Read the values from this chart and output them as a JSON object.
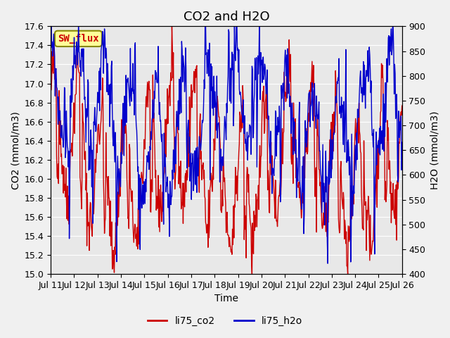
{
  "title": "CO2 and H2O",
  "xlabel": "Time",
  "ylabel_left": "CO2 (mmol/m3)",
  "ylabel_right": "H2O (mmol/m3)",
  "ylim_left": [
    15.0,
    17.6
  ],
  "ylim_right": [
    400,
    900
  ],
  "yticks_left": [
    15.0,
    15.2,
    15.4,
    15.6,
    15.8,
    16.0,
    16.2,
    16.4,
    16.6,
    16.8,
    17.0,
    17.2,
    17.4,
    17.6
  ],
  "yticks_right": [
    400,
    450,
    500,
    550,
    600,
    650,
    700,
    750,
    800,
    850,
    900
  ],
  "xtick_labels": [
    "Jul 11",
    "Jul 12",
    "Jul 13",
    "Jul 14",
    "Jul 15",
    "Jul 16",
    "Jul 17",
    "Jul 18",
    "Jul 19",
    "Jul 20",
    "Jul 21",
    "Jul 22",
    "Jul 23",
    "Jul 24",
    "Jul 25",
    "Jul 26"
  ],
  "co2_color": "#cc0000",
  "h2o_color": "#0000cc",
  "background_color": "#f0f0f0",
  "plot_bg_color": "#e8e8e8",
  "annotation_text": "SW_flux",
  "annotation_color": "#cc0000",
  "annotation_bg": "#ffff99",
  "annotation_border": "#888800",
  "legend_labels": [
    "li75_co2",
    "li75_h2o"
  ],
  "title_fontsize": 13,
  "label_fontsize": 10,
  "tick_fontsize": 9
}
